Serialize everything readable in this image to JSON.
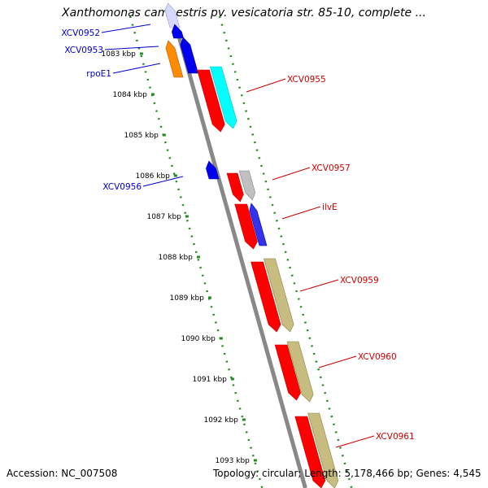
{
  "title": "Xanthomonas campestris pv. vesicatoria str. 85-10, complete ...",
  "footer": {
    "accession": "Accession: NC_007508",
    "topology": "Topology: circular; Length: 5,178,466 bp; Genes: 4,545"
  },
  "ticks": [
    "1083 kbp",
    "1084 kbp",
    "1085 kbp",
    "1086 kbp",
    "1087 kbp",
    "1088 kbp",
    "1089 kbp",
    "1090 kbp",
    "1091 kbp",
    "1092 kbp",
    "1093 kbp"
  ],
  "genes": [
    {
      "label": "XCV0952",
      "strand": "reverse",
      "color": "#0000ff"
    },
    {
      "label": "XCV0953",
      "strand": "reverse",
      "color": "#0000ff"
    },
    {
      "label": "rpoE1",
      "strand": "reverse",
      "color": "#0000ff"
    },
    {
      "label": "XCV0955",
      "strand": "forward",
      "color": "#ff0000"
    },
    {
      "label": "XCV0956",
      "strand": "reverse",
      "color": "#0000ff"
    },
    {
      "label": "XCV0957",
      "strand": "forward",
      "color": "#ff0000"
    },
    {
      "label": "ilvE",
      "strand": "forward",
      "color": "#ff0000"
    },
    {
      "label": "XCV0959",
      "strand": "forward",
      "color": "#ff0000"
    },
    {
      "label": "XCV0960",
      "strand": "forward",
      "color": "#ff0000"
    },
    {
      "label": "XCV0961",
      "strand": "forward",
      "color": "#ff0000"
    }
  ],
  "colors": {
    "reverse_label": "#0000cc",
    "forward_label": "#cc0000",
    "backbone": "#888888",
    "tick_dots": "#228b22"
  }
}
